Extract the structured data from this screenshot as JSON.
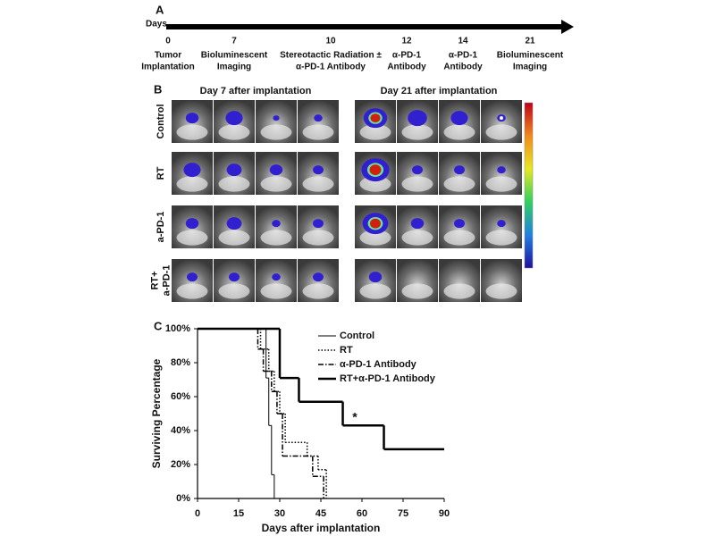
{
  "panel_a": {
    "letter": "A",
    "axis_label": "Days",
    "events": [
      {
        "day": 0,
        "lines": [
          "Tumor",
          "Implantation"
        ]
      },
      {
        "day": 7,
        "lines": [
          "Bioluminescent",
          "Imaging"
        ]
      },
      {
        "day": 10,
        "lines": [
          "Stereotactic Radiation ±",
          "α-PD-1 Antibody"
        ]
      },
      {
        "day": 12,
        "lines": [
          "α-PD-1",
          "Antibody"
        ]
      },
      {
        "day": 14,
        "lines": [
          "α-PD-1",
          "Antibody"
        ]
      },
      {
        "day": 21,
        "lines": [
          "Bioluminescent",
          "Imaging"
        ]
      }
    ]
  },
  "panel_b": {
    "letter": "B",
    "columns": [
      "Day 7 after implantation",
      "Day 21 after implantation"
    ],
    "rows": [
      [
        "Control"
      ],
      [
        "RT"
      ],
      [
        "a-PD-1"
      ],
      [
        "RT+",
        "a-PD-1"
      ]
    ]
  },
  "chart_data": {
    "type": "step",
    "panel_letter": "C",
    "x_label": "Days after implantation",
    "y_label": "Surviving Percentage",
    "xlim": [
      0,
      90
    ],
    "xticks": [
      0,
      15,
      30,
      45,
      60,
      75,
      90
    ],
    "ylim": [
      0,
      100
    ],
    "yticks": [
      {
        "value": 0,
        "label": "0%"
      },
      {
        "value": 20,
        "label": "20%"
      },
      {
        "value": 40,
        "label": "40%"
      },
      {
        "value": 60,
        "label": "60%"
      },
      {
        "value": 80,
        "label": "80%"
      },
      {
        "value": 100,
        "label": "100%"
      }
    ],
    "annotation": "*",
    "series": [
      {
        "name": "Control",
        "color": "#000000",
        "style": "solid",
        "width": 1,
        "x": [
          0,
          25,
          26,
          27,
          28
        ],
        "values": [
          100,
          71,
          43,
          14,
          0
        ]
      },
      {
        "name": "RT",
        "color": "#000000",
        "style": "dotted",
        "width": 1.5,
        "x": [
          0,
          23,
          26,
          28,
          30,
          32,
          40,
          44,
          47
        ],
        "values": [
          100,
          88,
          75,
          63,
          50,
          33,
          25,
          17,
          0
        ]
      },
      {
        "name": "α-PD-1 Antibody",
        "color": "#000000",
        "style": "dashdot",
        "width": 1.5,
        "x": [
          0,
          22,
          24,
          27,
          29,
          31,
          42,
          46
        ],
        "values": [
          100,
          88,
          75,
          63,
          50,
          25,
          13,
          0
        ]
      },
      {
        "name": "RT+α-PD-1 Antibody",
        "color": "#000000",
        "style": "solid",
        "width": 2.5,
        "x": [
          0,
          30,
          37,
          53,
          68,
          90
        ],
        "values": [
          100,
          71,
          57,
          43,
          29,
          29
        ]
      }
    ]
  }
}
